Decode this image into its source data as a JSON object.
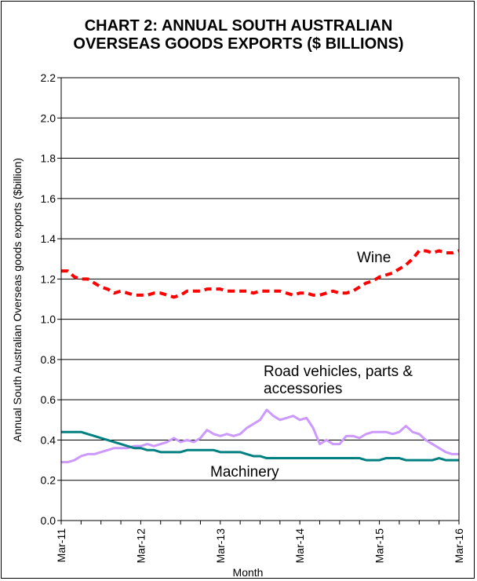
{
  "chart_data": {
    "type": "line",
    "title_lines": [
      "CHART 2: ANNUAL SOUTH AUSTRALIAN",
      "OVERSEAS GOODS EXPORTS ($ BILLIONS)"
    ],
    "xlabel": "Month",
    "ylabel": "Annual South Australian Overseas  goods exports ($billion)",
    "x_tick_labels": [
      "Mar-11",
      "Mar-12",
      "Mar-13",
      "Mar-14",
      "Mar-15",
      "Mar-16"
    ],
    "x_range": [
      0,
      60
    ],
    "y_tick_labels": [
      "0.0",
      "0.2",
      "0.4",
      "0.6",
      "0.8",
      "1.0",
      "1.2",
      "1.4",
      "1.6",
      "1.8",
      "2.0",
      "2.2"
    ],
    "ylim": [
      0,
      2.2
    ],
    "grid": true,
    "series": [
      {
        "name": "Wine",
        "color": "#ff0000",
        "style": "dashed",
        "values": [
          1.24,
          1.24,
          1.21,
          1.2,
          1.2,
          1.18,
          1.16,
          1.15,
          1.13,
          1.14,
          1.13,
          1.12,
          1.12,
          1.12,
          1.13,
          1.13,
          1.12,
          1.11,
          1.12,
          1.14,
          1.14,
          1.14,
          1.15,
          1.15,
          1.15,
          1.14,
          1.14,
          1.14,
          1.14,
          1.13,
          1.14,
          1.14,
          1.14,
          1.14,
          1.13,
          1.12,
          1.13,
          1.13,
          1.12,
          1.12,
          1.13,
          1.14,
          1.13,
          1.13,
          1.14,
          1.16,
          1.18,
          1.19,
          1.21,
          1.22,
          1.23,
          1.25,
          1.27,
          1.3,
          1.34,
          1.34,
          1.33,
          1.34,
          1.33,
          1.33,
          1.34
        ]
      },
      {
        "name": "Road vehicles, parts & accessories",
        "label_lines": [
          "Road vehicles, parts &",
          "accessories"
        ],
        "color": "#cc99ff",
        "style": "solid",
        "values": [
          0.29,
          0.29,
          0.3,
          0.32,
          0.33,
          0.33,
          0.34,
          0.35,
          0.36,
          0.36,
          0.36,
          0.37,
          0.37,
          0.38,
          0.37,
          0.38,
          0.39,
          0.41,
          0.39,
          0.4,
          0.39,
          0.41,
          0.45,
          0.43,
          0.42,
          0.43,
          0.42,
          0.43,
          0.46,
          0.48,
          0.5,
          0.55,
          0.52,
          0.5,
          0.51,
          0.52,
          0.5,
          0.51,
          0.46,
          0.38,
          0.4,
          0.38,
          0.38,
          0.42,
          0.42,
          0.41,
          0.43,
          0.44,
          0.44,
          0.44,
          0.43,
          0.44,
          0.47,
          0.44,
          0.43,
          0.4,
          0.38,
          0.36,
          0.34,
          0.33,
          0.33
        ]
      },
      {
        "name": "Machinery",
        "color": "#008080",
        "style": "solid",
        "values": [
          0.44,
          0.44,
          0.44,
          0.44,
          0.43,
          0.42,
          0.41,
          0.4,
          0.39,
          0.38,
          0.37,
          0.36,
          0.36,
          0.35,
          0.35,
          0.34,
          0.34,
          0.34,
          0.34,
          0.35,
          0.35,
          0.35,
          0.35,
          0.35,
          0.34,
          0.34,
          0.34,
          0.34,
          0.33,
          0.32,
          0.32,
          0.31,
          0.31,
          0.31,
          0.31,
          0.31,
          0.31,
          0.31,
          0.31,
          0.31,
          0.31,
          0.31,
          0.31,
          0.31,
          0.31,
          0.31,
          0.3,
          0.3,
          0.3,
          0.31,
          0.31,
          0.31,
          0.3,
          0.3,
          0.3,
          0.3,
          0.3,
          0.31,
          0.3,
          0.3,
          0.3
        ]
      }
    ]
  }
}
